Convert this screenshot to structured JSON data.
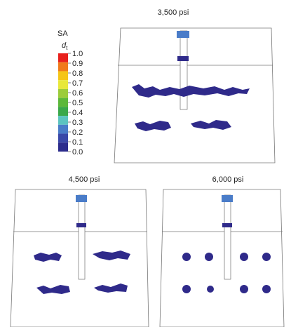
{
  "legend": {
    "title": "SA",
    "variable": "d",
    "subscript": "t",
    "levels": [
      "1.0",
      "0.9",
      "0.8",
      "0.7",
      "0.6",
      "0.5",
      "0.4",
      "0.3",
      "0.2",
      "0.1",
      "0.0"
    ],
    "colors": [
      "#e8201c",
      "#f07a1a",
      "#f5c518",
      "#e8e83a",
      "#9ccc3a",
      "#5cb83a",
      "#3aa84a",
      "#5cc4c0",
      "#4a7cc8",
      "#3a48a8",
      "#2c2c8c"
    ]
  },
  "panels": [
    {
      "label": "3,500 psi"
    },
    {
      "label": "4,500 psi"
    },
    {
      "label": "6,000 psi"
    }
  ]
}
